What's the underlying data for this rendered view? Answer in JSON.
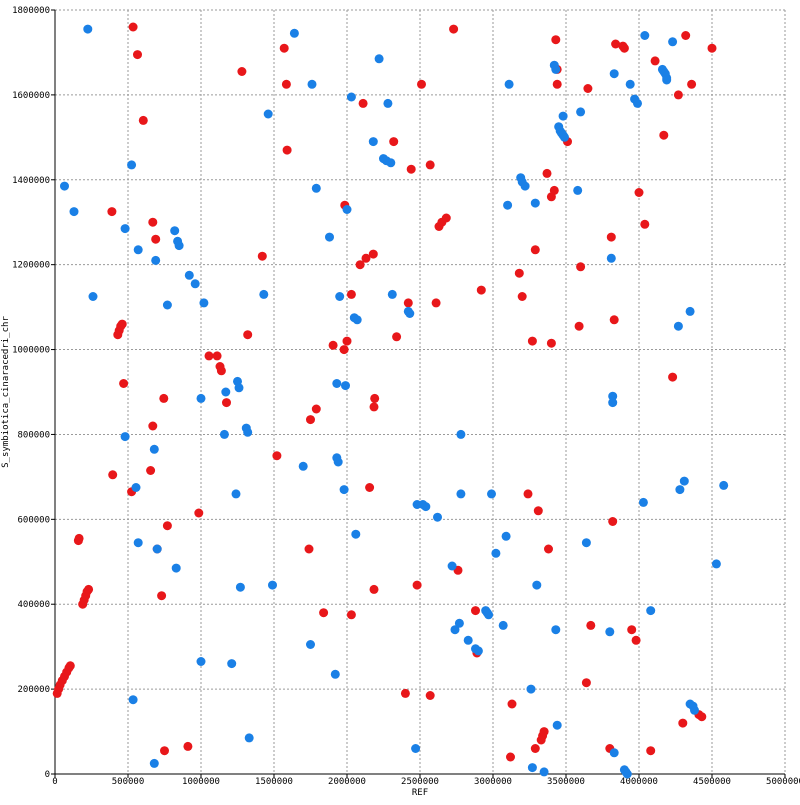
{
  "chart_data": {
    "type": "scatter",
    "title": "",
    "xlabel": "REF",
    "ylabel": "S_symbiotica_cinaracedri_chr",
    "xlim": [
      0,
      5000000
    ],
    "ylim": [
      0,
      1800000
    ],
    "x_ticks": [
      "0",
      "500000",
      "1000000",
      "1500000",
      "2000000",
      "2500000",
      "3000000",
      "3500000",
      "4000000",
      "4500000",
      "5000000"
    ],
    "y_ticks": [
      "0",
      "200000",
      "400000",
      "600000",
      "800000",
      "1000000",
      "1200000",
      "1400000",
      "1600000",
      "1800000"
    ],
    "grid": true,
    "series": [
      {
        "color": "#e8171a",
        "points": [
          [
            15000,
            190000
          ],
          [
            25000,
            200000
          ],
          [
            35000,
            210000
          ],
          [
            50000,
            220000
          ],
          [
            65000,
            230000
          ],
          [
            80000,
            240000
          ],
          [
            95000,
            250000
          ],
          [
            105000,
            255000
          ],
          [
            190000,
            400000
          ],
          [
            200000,
            410000
          ],
          [
            210000,
            420000
          ],
          [
            220000,
            430000
          ],
          [
            230000,
            435000
          ],
          [
            160000,
            550000
          ],
          [
            165000,
            555000
          ],
          [
            395000,
            705000
          ],
          [
            390000,
            1325000
          ],
          [
            430000,
            1035000
          ],
          [
            440000,
            1045000
          ],
          [
            450000,
            1055000
          ],
          [
            460000,
            1060000
          ],
          [
            470000,
            920000
          ],
          [
            525000,
            665000
          ],
          [
            535000,
            1760000
          ],
          [
            565000,
            1695000
          ],
          [
            605000,
            1540000
          ],
          [
            655000,
            715000
          ],
          [
            670000,
            820000
          ],
          [
            670000,
            1300000
          ],
          [
            690000,
            1260000
          ],
          [
            700000,
            530000
          ],
          [
            730000,
            420000
          ],
          [
            745000,
            885000
          ],
          [
            750000,
            55000
          ],
          [
            770000,
            585000
          ],
          [
            910000,
            65000
          ],
          [
            985000,
            615000
          ],
          [
            1055000,
            985000
          ],
          [
            1110000,
            985000
          ],
          [
            1130000,
            960000
          ],
          [
            1140000,
            950000
          ],
          [
            1175000,
            875000
          ],
          [
            1280000,
            1655000
          ],
          [
            1320000,
            1035000
          ],
          [
            1420000,
            1220000
          ],
          [
            1520000,
            750000
          ],
          [
            1570000,
            1710000
          ],
          [
            1585000,
            1625000
          ],
          [
            1590000,
            1470000
          ],
          [
            1740000,
            530000
          ],
          [
            1750000,
            835000
          ],
          [
            1790000,
            860000
          ],
          [
            1840000,
            380000
          ],
          [
            1905000,
            1010000
          ],
          [
            1980000,
            1000000
          ],
          [
            1985000,
            1340000
          ],
          [
            2000000,
            1020000
          ],
          [
            2030000,
            1130000
          ],
          [
            2030000,
            375000
          ],
          [
            2090000,
            1200000
          ],
          [
            2110000,
            1580000
          ],
          [
            2130000,
            1215000
          ],
          [
            2155000,
            675000
          ],
          [
            2180000,
            1225000
          ],
          [
            2185000,
            435000
          ],
          [
            2185000,
            865000
          ],
          [
            2190000,
            885000
          ],
          [
            2320000,
            1490000
          ],
          [
            2340000,
            1030000
          ],
          [
            2400000,
            190000
          ],
          [
            2420000,
            1110000
          ],
          [
            2440000,
            1425000
          ],
          [
            2480000,
            445000
          ],
          [
            2510000,
            1625000
          ],
          [
            2570000,
            185000
          ],
          [
            2570000,
            1435000
          ],
          [
            2610000,
            1110000
          ],
          [
            2630000,
            1290000
          ],
          [
            2650000,
            1300000
          ],
          [
            2680000,
            1310000
          ],
          [
            2730000,
            1755000
          ],
          [
            2760000,
            480000
          ],
          [
            2880000,
            385000
          ],
          [
            2890000,
            285000
          ],
          [
            2920000,
            1140000
          ],
          [
            3120000,
            40000
          ],
          [
            3130000,
            165000
          ],
          [
            3180000,
            1180000
          ],
          [
            3200000,
            1125000
          ],
          [
            3240000,
            660000
          ],
          [
            3270000,
            1020000
          ],
          [
            3290000,
            1235000
          ],
          [
            3290000,
            60000
          ],
          [
            3310000,
            620000
          ],
          [
            3330000,
            80000
          ],
          [
            3340000,
            90000
          ],
          [
            3350000,
            100000
          ],
          [
            3370000,
            1415000
          ],
          [
            3380000,
            530000
          ],
          [
            3400000,
            1015000
          ],
          [
            3400000,
            1360000
          ],
          [
            3420000,
            1375000
          ],
          [
            3430000,
            1730000
          ],
          [
            3440000,
            1625000
          ],
          [
            3440000,
            1660000
          ],
          [
            3510000,
            1490000
          ],
          [
            3590000,
            1055000
          ],
          [
            3600000,
            1195000
          ],
          [
            3640000,
            215000
          ],
          [
            3650000,
            1615000
          ],
          [
            3670000,
            350000
          ],
          [
            3800000,
            60000
          ],
          [
            3810000,
            1265000
          ],
          [
            3820000,
            595000
          ],
          [
            3830000,
            1070000
          ],
          [
            3840000,
            1720000
          ],
          [
            3890000,
            1715000
          ],
          [
            3900000,
            1710000
          ],
          [
            3950000,
            340000
          ],
          [
            3980000,
            315000
          ],
          [
            4000000,
            1370000
          ],
          [
            4040000,
            1295000
          ],
          [
            4080000,
            55000
          ],
          [
            4110000,
            1680000
          ],
          [
            4170000,
            1505000
          ],
          [
            4230000,
            935000
          ],
          [
            4270000,
            1600000
          ],
          [
            4300000,
            120000
          ],
          [
            4320000,
            1740000
          ],
          [
            4360000,
            1625000
          ],
          [
            4410000,
            140000
          ],
          [
            4430000,
            135000
          ],
          [
            4500000,
            1710000
          ]
        ]
      },
      {
        "color": "#1a80e6",
        "points": [
          [
            225000,
            1755000
          ],
          [
            65000,
            1385000
          ],
          [
            130000,
            1325000
          ],
          [
            260000,
            1125000
          ],
          [
            480000,
            1285000
          ],
          [
            480000,
            795000
          ],
          [
            525000,
            1435000
          ],
          [
            535000,
            175000
          ],
          [
            555000,
            675000
          ],
          [
            570000,
            1235000
          ],
          [
            570000,
            545000
          ],
          [
            680000,
            25000
          ],
          [
            680000,
            765000
          ],
          [
            690000,
            1210000
          ],
          [
            700000,
            530000
          ],
          [
            770000,
            1105000
          ],
          [
            820000,
            1280000
          ],
          [
            830000,
            485000
          ],
          [
            840000,
            1255000
          ],
          [
            850000,
            1245000
          ],
          [
            920000,
            1175000
          ],
          [
            960000,
            1155000
          ],
          [
            1000000,
            265000
          ],
          [
            1000000,
            885000
          ],
          [
            1020000,
            1110000
          ],
          [
            1160000,
            800000
          ],
          [
            1170000,
            900000
          ],
          [
            1210000,
            260000
          ],
          [
            1240000,
            660000
          ],
          [
            1250000,
            925000
          ],
          [
            1260000,
            910000
          ],
          [
            1270000,
            440000
          ],
          [
            1310000,
            815000
          ],
          [
            1320000,
            805000
          ],
          [
            1330000,
            85000
          ],
          [
            1430000,
            1130000
          ],
          [
            1460000,
            1555000
          ],
          [
            1490000,
            445000
          ],
          [
            1640000,
            1745000
          ],
          [
            1700000,
            725000
          ],
          [
            1750000,
            305000
          ],
          [
            1760000,
            1625000
          ],
          [
            1790000,
            1380000
          ],
          [
            1880000,
            1265000
          ],
          [
            1920000,
            235000
          ],
          [
            1930000,
            920000
          ],
          [
            1930000,
            745000
          ],
          [
            1940000,
            735000
          ],
          [
            1950000,
            1125000
          ],
          [
            1980000,
            670000
          ],
          [
            1990000,
            915000
          ],
          [
            2000000,
            1330000
          ],
          [
            2030000,
            1595000
          ],
          [
            2050000,
            1075000
          ],
          [
            2060000,
            565000
          ],
          [
            2070000,
            1070000
          ],
          [
            2180000,
            1490000
          ],
          [
            2220000,
            1685000
          ],
          [
            2250000,
            1450000
          ],
          [
            2270000,
            1445000
          ],
          [
            2280000,
            1580000
          ],
          [
            2300000,
            1440000
          ],
          [
            2310000,
            1130000
          ],
          [
            2420000,
            1090000
          ],
          [
            2430000,
            1085000
          ],
          [
            2470000,
            60000
          ],
          [
            2480000,
            635000
          ],
          [
            2520000,
            635000
          ],
          [
            2540000,
            630000
          ],
          [
            2620000,
            605000
          ],
          [
            2720000,
            490000
          ],
          [
            2740000,
            340000
          ],
          [
            2770000,
            355000
          ],
          [
            2780000,
            800000
          ],
          [
            2780000,
            660000
          ],
          [
            2830000,
            315000
          ],
          [
            2880000,
            295000
          ],
          [
            2900000,
            290000
          ],
          [
            2950000,
            385000
          ],
          [
            2960000,
            380000
          ],
          [
            2970000,
            375000
          ],
          [
            2990000,
            660000
          ],
          [
            3020000,
            520000
          ],
          [
            3070000,
            350000
          ],
          [
            3090000,
            560000
          ],
          [
            3100000,
            1340000
          ],
          [
            3110000,
            1625000
          ],
          [
            3190000,
            1405000
          ],
          [
            3200000,
            1395000
          ],
          [
            3220000,
            1385000
          ],
          [
            3260000,
            200000
          ],
          [
            3270000,
            15000
          ],
          [
            3290000,
            1345000
          ],
          [
            3300000,
            445000
          ],
          [
            3350000,
            5000
          ],
          [
            3420000,
            1670000
          ],
          [
            3430000,
            1660000
          ],
          [
            3430000,
            340000
          ],
          [
            3440000,
            115000
          ],
          [
            3450000,
            1525000
          ],
          [
            3460000,
            1515000
          ],
          [
            3470000,
            1510000
          ],
          [
            3480000,
            1505000
          ],
          [
            3480000,
            1550000
          ],
          [
            3490000,
            1500000
          ],
          [
            3580000,
            1375000
          ],
          [
            3600000,
            1560000
          ],
          [
            3640000,
            545000
          ],
          [
            3800000,
            335000
          ],
          [
            3810000,
            1215000
          ],
          [
            3820000,
            875000
          ],
          [
            3820000,
            890000
          ],
          [
            3830000,
            1650000
          ],
          [
            3830000,
            50000
          ],
          [
            3900000,
            10000
          ],
          [
            3910000,
            5000
          ],
          [
            3920000,
            0
          ],
          [
            3940000,
            1625000
          ],
          [
            3970000,
            1590000
          ],
          [
            3990000,
            1580000
          ],
          [
            4030000,
            640000
          ],
          [
            4040000,
            1740000
          ],
          [
            4080000,
            385000
          ],
          [
            4160000,
            1660000
          ],
          [
            4170000,
            1655000
          ],
          [
            4180000,
            1650000
          ],
          [
            4190000,
            1640000
          ],
          [
            4190000,
            1635000
          ],
          [
            4230000,
            1725000
          ],
          [
            4270000,
            1055000
          ],
          [
            4280000,
            670000
          ],
          [
            4310000,
            690000
          ],
          [
            4350000,
            1090000
          ],
          [
            4350000,
            165000
          ],
          [
            4370000,
            160000
          ],
          [
            4380000,
            150000
          ],
          [
            4530000,
            495000
          ],
          [
            4580000,
            680000
          ]
        ]
      }
    ]
  }
}
